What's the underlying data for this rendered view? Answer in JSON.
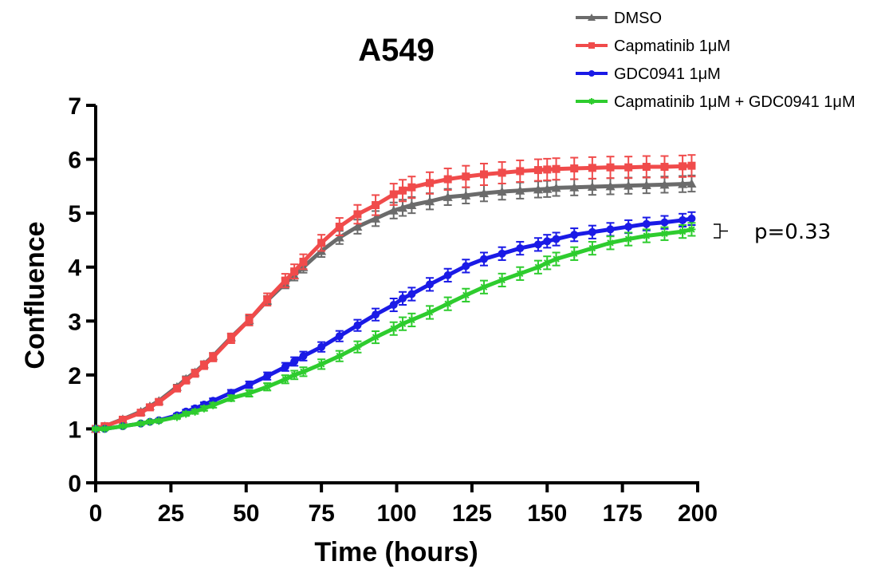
{
  "chart_data": {
    "type": "line",
    "title": "A549",
    "xlabel": "Time (hours)",
    "ylabel": "Confluence",
    "xlim": [
      0,
      200
    ],
    "ylim": [
      0,
      7
    ],
    "xticks": [
      "0",
      "25",
      "50",
      "75",
      "100",
      "125",
      "150",
      "175",
      "200"
    ],
    "yticks": [
      "0",
      "1",
      "2",
      "3",
      "4",
      "5",
      "6",
      "7"
    ],
    "grid": false,
    "legend_position": "top-right",
    "annotation": {
      "text": "p=0.33"
    },
    "series": [
      {
        "name": "DMSO",
        "color": "#6b6b6b",
        "marker": "triangle",
        "x": [
          0,
          3,
          9,
          15,
          18,
          21,
          27,
          30,
          33,
          36,
          39,
          45,
          51,
          57,
          63,
          66,
          69,
          75,
          81,
          87,
          93,
          99,
          102,
          105,
          111,
          117,
          123,
          129,
          135,
          141,
          147,
          150,
          153,
          159,
          165,
          171,
          177,
          183,
          189,
          195,
          198
        ],
        "y": [
          1.0,
          1.05,
          1.18,
          1.32,
          1.42,
          1.52,
          1.78,
          1.93,
          2.05,
          2.2,
          2.35,
          2.7,
          3.02,
          3.38,
          3.7,
          3.85,
          4.0,
          4.3,
          4.55,
          4.75,
          4.9,
          5.05,
          5.1,
          5.15,
          5.22,
          5.3,
          5.33,
          5.37,
          5.4,
          5.42,
          5.44,
          5.45,
          5.47,
          5.48,
          5.49,
          5.5,
          5.51,
          5.52,
          5.53,
          5.54,
          5.55
        ],
        "error": 0.15
      },
      {
        "name": "Capmatinib 1μM",
        "color": "#f04b4b",
        "marker": "square",
        "x": [
          0,
          3,
          9,
          15,
          18,
          21,
          27,
          30,
          33,
          36,
          39,
          45,
          51,
          57,
          63,
          66,
          69,
          75,
          81,
          87,
          93,
          99,
          102,
          105,
          111,
          117,
          123,
          129,
          135,
          141,
          147,
          150,
          153,
          159,
          165,
          171,
          177,
          183,
          189,
          195,
          198
        ],
        "y": [
          1.0,
          1.05,
          1.17,
          1.3,
          1.4,
          1.5,
          1.75,
          1.9,
          2.03,
          2.18,
          2.33,
          2.68,
          3.02,
          3.4,
          3.75,
          3.92,
          4.1,
          4.45,
          4.75,
          4.98,
          5.15,
          5.35,
          5.42,
          5.48,
          5.56,
          5.63,
          5.68,
          5.72,
          5.75,
          5.78,
          5.8,
          5.81,
          5.82,
          5.83,
          5.84,
          5.85,
          5.85,
          5.86,
          5.86,
          5.87,
          5.88
        ],
        "error": 0.2
      },
      {
        "name": "GDC0941 1μM",
        "color": "#1a1ae6",
        "marker": "circle",
        "x": [
          0,
          3,
          9,
          15,
          18,
          21,
          27,
          30,
          33,
          36,
          39,
          45,
          51,
          57,
          63,
          66,
          69,
          75,
          81,
          87,
          93,
          99,
          102,
          105,
          111,
          117,
          123,
          129,
          135,
          141,
          147,
          150,
          153,
          159,
          165,
          171,
          177,
          183,
          189,
          195,
          198
        ],
        "y": [
          1.0,
          1.0,
          1.05,
          1.1,
          1.13,
          1.16,
          1.25,
          1.32,
          1.38,
          1.45,
          1.52,
          1.67,
          1.82,
          1.98,
          2.15,
          2.25,
          2.35,
          2.52,
          2.72,
          2.92,
          3.12,
          3.3,
          3.42,
          3.5,
          3.68,
          3.85,
          4.02,
          4.15,
          4.25,
          4.35,
          4.42,
          4.48,
          4.52,
          4.6,
          4.65,
          4.7,
          4.75,
          4.8,
          4.83,
          4.87,
          4.9
        ],
        "error": 0.12
      },
      {
        "name": "Capmatinib 1μM + GDC0941 1μM",
        "color": "#2ecc2e",
        "marker": "star",
        "x": [
          0,
          3,
          9,
          15,
          18,
          21,
          27,
          30,
          33,
          36,
          39,
          45,
          51,
          57,
          63,
          66,
          69,
          75,
          81,
          87,
          93,
          99,
          102,
          105,
          111,
          117,
          123,
          129,
          135,
          141,
          147,
          150,
          153,
          159,
          165,
          171,
          177,
          183,
          189,
          195,
          198
        ],
        "y": [
          1.0,
          1.0,
          1.05,
          1.1,
          1.13,
          1.15,
          1.22,
          1.28,
          1.32,
          1.38,
          1.44,
          1.57,
          1.66,
          1.78,
          1.92,
          2.0,
          2.06,
          2.2,
          2.35,
          2.52,
          2.7,
          2.86,
          2.95,
          3.02,
          3.16,
          3.32,
          3.48,
          3.63,
          3.76,
          3.88,
          4.0,
          4.08,
          4.15,
          4.25,
          4.35,
          4.45,
          4.52,
          4.58,
          4.62,
          4.66,
          4.7
        ],
        "error": 0.12
      }
    ]
  }
}
